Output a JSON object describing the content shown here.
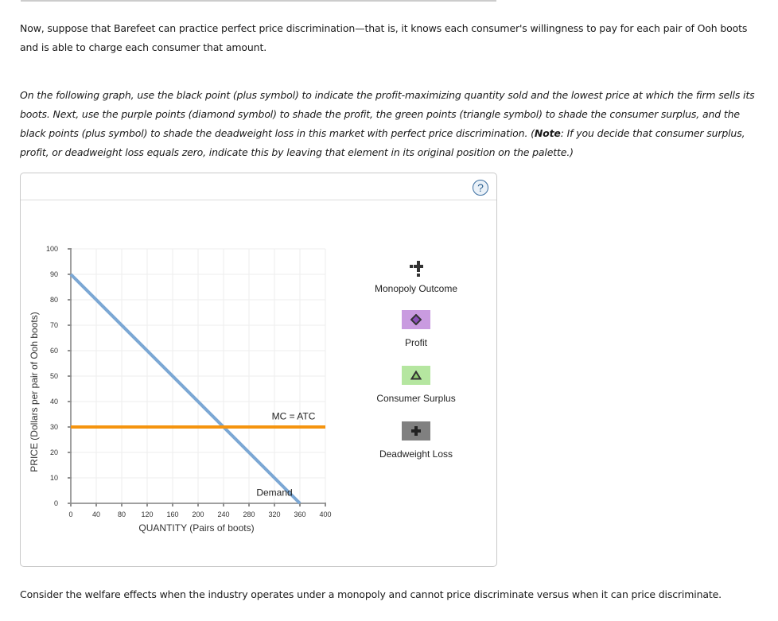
{
  "intro": {
    "paragraph1": "Now, suppose that Barefeet can practice perfect price discrimination—that is, it knows each consumer's willingness to pay for each pair of Ooh boots and is able to charge each consumer that amount.",
    "paragraph2_a": "On the following graph, use the black point (plus symbol) to indicate the profit-maximizing quantity sold and the lowest price at which the firm sells its boots. Next, use the purple points (diamond symbol) to shade the profit, the green points (triangle symbol) to shade the consumer surplus, and the black points (plus symbol) to shade the deadweight loss in this market with perfect price discrimination. (",
    "paragraph2_note": "Note",
    "paragraph2_b": ": If you decide that consumer surplus, profit, or deadweight loss equals zero, indicate this by leaving that element in its original position on the palette.)"
  },
  "footer": {
    "paragraph": "Consider the welfare effects when the industry operates under a monopoly and cannot price discriminate versus when it can price discriminate."
  },
  "panel": {
    "help_icon": "?"
  },
  "palette": {
    "items": [
      {
        "label": "Monopoly Outcome",
        "icon": "plus-point-icon",
        "color": "#333333"
      },
      {
        "label": "Profit",
        "icon": "diamond-icon",
        "color": "#c99be0"
      },
      {
        "label": "Consumer Surplus",
        "icon": "triangle-icon",
        "color": "#b5e6a0"
      },
      {
        "label": "Deadweight Loss",
        "icon": "plus-icon",
        "color": "#808080"
      }
    ]
  },
  "chart_data": {
    "type": "line",
    "title": "",
    "xlabel": "QUANTITY (Pairs of boots)",
    "ylabel": "PRICE (Dollars per pair of Ooh boots)",
    "xlim": [
      0,
      400
    ],
    "ylim": [
      0,
      100
    ],
    "x_ticks": [
      "0",
      "40",
      "80",
      "120",
      "160",
      "200",
      "240",
      "280",
      "320",
      "360",
      "400"
    ],
    "y_ticks": [
      "0",
      "10",
      "20",
      "30",
      "40",
      "50",
      "60",
      "70",
      "80",
      "90",
      "100"
    ],
    "grid": true,
    "series": [
      {
        "name": "Demand",
        "color": "#7ba7d4",
        "points": [
          [
            0,
            90
          ],
          [
            360,
            0
          ]
        ]
      },
      {
        "name": "MC = ATC",
        "color": "#f5940f",
        "points": [
          [
            0,
            30
          ],
          [
            400,
            30
          ]
        ]
      }
    ],
    "annotations": [
      {
        "text": "MC = ATC",
        "x": 350,
        "y": 33
      },
      {
        "text": "Demand",
        "x": 320,
        "y": 3
      }
    ]
  }
}
